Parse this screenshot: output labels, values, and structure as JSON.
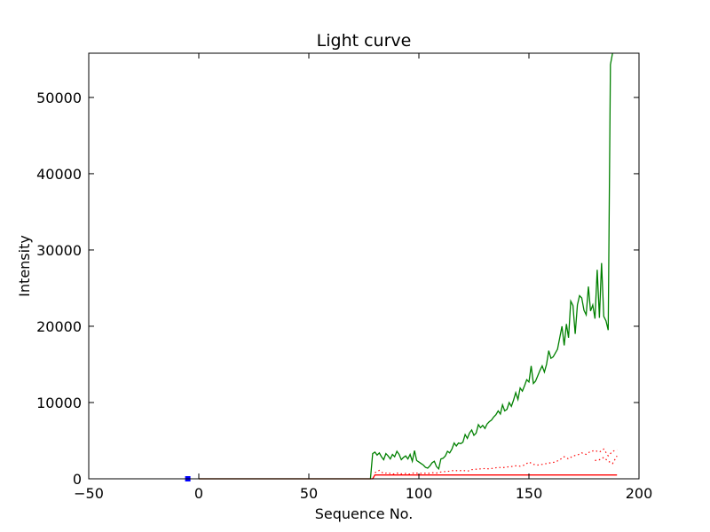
{
  "chart_data": {
    "type": "line",
    "title": "Light curve",
    "xlabel": "Sequence No.",
    "ylabel": "Intensity",
    "xlim": [
      -50,
      200
    ],
    "ylim": [
      0,
      55800
    ],
    "grid": false,
    "x_ticks": [
      -50,
      0,
      50,
      100,
      150,
      200
    ],
    "y_ticks": [
      0,
      10000,
      20000,
      30000,
      40000,
      50000
    ],
    "series": [
      {
        "color": "#008000",
        "style": "solid",
        "points": [
          [
            0,
            0
          ],
          [
            78,
            0
          ],
          [
            79,
            3300
          ],
          [
            80,
            3500
          ],
          [
            81,
            3100
          ],
          [
            82,
            3400
          ],
          [
            83,
            2900
          ],
          [
            84,
            2500
          ],
          [
            85,
            3300
          ],
          [
            86,
            3000
          ],
          [
            87,
            2600
          ],
          [
            88,
            3200
          ],
          [
            89,
            2900
          ],
          [
            90,
            3600
          ],
          [
            91,
            3200
          ],
          [
            92,
            2500
          ],
          [
            93,
            2800
          ],
          [
            94,
            3000
          ],
          [
            95,
            2600
          ],
          [
            96,
            3200
          ],
          [
            97,
            2300
          ],
          [
            98,
            3700
          ],
          [
            99,
            2400
          ],
          [
            100,
            2200
          ],
          [
            101,
            2000
          ],
          [
            102,
            1800
          ],
          [
            103,
            1500
          ],
          [
            104,
            1400
          ],
          [
            105,
            1700
          ],
          [
            106,
            2100
          ],
          [
            107,
            2300
          ],
          [
            108,
            1600
          ],
          [
            109,
            1300
          ],
          [
            110,
            2600
          ],
          [
            111,
            2700
          ],
          [
            112,
            3000
          ],
          [
            113,
            3600
          ],
          [
            114,
            3400
          ],
          [
            115,
            3900
          ],
          [
            116,
            4700
          ],
          [
            117,
            4300
          ],
          [
            118,
            4700
          ],
          [
            119,
            4600
          ],
          [
            120,
            4800
          ],
          [
            121,
            5800
          ],
          [
            122,
            5300
          ],
          [
            123,
            6000
          ],
          [
            124,
            6400
          ],
          [
            125,
            5700
          ],
          [
            126,
            6000
          ],
          [
            127,
            7100
          ],
          [
            128,
            6700
          ],
          [
            129,
            7000
          ],
          [
            130,
            6600
          ],
          [
            131,
            7200
          ],
          [
            132,
            7500
          ],
          [
            133,
            7700
          ],
          [
            134,
            8100
          ],
          [
            135,
            8400
          ],
          [
            136,
            8900
          ],
          [
            137,
            8500
          ],
          [
            138,
            9700
          ],
          [
            139,
            8900
          ],
          [
            140,
            9100
          ],
          [
            141,
            10000
          ],
          [
            142,
            9500
          ],
          [
            143,
            10300
          ],
          [
            144,
            11300
          ],
          [
            145,
            10400
          ],
          [
            146,
            11900
          ],
          [
            147,
            11500
          ],
          [
            148,
            12200
          ],
          [
            149,
            13000
          ],
          [
            150,
            12700
          ],
          [
            151,
            14800
          ],
          [
            152,
            12500
          ],
          [
            153,
            12800
          ],
          [
            154,
            13500
          ],
          [
            155,
            14200
          ],
          [
            156,
            14800
          ],
          [
            157,
            14000
          ],
          [
            158,
            15000
          ],
          [
            159,
            16800
          ],
          [
            160,
            15800
          ],
          [
            161,
            16000
          ],
          [
            162,
            16500
          ],
          [
            163,
            17000
          ],
          [
            164,
            18500
          ],
          [
            165,
            20000
          ],
          [
            166,
            17500
          ],
          [
            167,
            20300
          ],
          [
            168,
            18500
          ],
          [
            169,
            23300
          ],
          [
            170,
            22700
          ],
          [
            171,
            19000
          ],
          [
            172,
            22800
          ],
          [
            173,
            24000
          ],
          [
            174,
            23700
          ],
          [
            175,
            22100
          ],
          [
            176,
            21500
          ],
          [
            177,
            25200
          ],
          [
            178,
            22000
          ],
          [
            179,
            22800
          ],
          [
            180,
            21000
          ],
          [
            181,
            27400
          ],
          [
            182,
            21100
          ],
          [
            183,
            28300
          ],
          [
            184,
            21300
          ],
          [
            185,
            20700
          ],
          [
            186,
            19500
          ],
          [
            187,
            54300
          ],
          [
            188,
            55800
          ]
        ]
      },
      {
        "color": "#ff0000",
        "style": "solid",
        "points": [
          [
            0,
            0
          ],
          [
            79,
            0
          ],
          [
            80,
            500
          ],
          [
            190,
            500
          ]
        ]
      },
      {
        "color": "#ff0000",
        "style": "dotted",
        "points": [
          [
            80,
            800
          ],
          [
            82,
            1100
          ],
          [
            84,
            700
          ],
          [
            86,
            800
          ],
          [
            88,
            600
          ],
          [
            90,
            750
          ],
          [
            92,
            650
          ],
          [
            94,
            700
          ],
          [
            96,
            600
          ],
          [
            98,
            800
          ],
          [
            100,
            700
          ],
          [
            102,
            750
          ],
          [
            104,
            700
          ],
          [
            106,
            800
          ],
          [
            108,
            750
          ],
          [
            110,
            900
          ],
          [
            112,
            950
          ],
          [
            114,
            1000
          ],
          [
            116,
            1100
          ],
          [
            118,
            1050
          ],
          [
            120,
            1100
          ],
          [
            122,
            1000
          ],
          [
            124,
            1200
          ],
          [
            126,
            1250
          ],
          [
            128,
            1300
          ],
          [
            130,
            1350
          ],
          [
            132,
            1300
          ],
          [
            134,
            1400
          ],
          [
            136,
            1500
          ],
          [
            138,
            1450
          ],
          [
            140,
            1550
          ],
          [
            142,
            1600
          ],
          [
            144,
            1700
          ],
          [
            146,
            1650
          ],
          [
            148,
            1800
          ],
          [
            150,
            2200
          ],
          [
            152,
            1900
          ],
          [
            154,
            1800
          ],
          [
            156,
            1900
          ],
          [
            158,
            2000
          ],
          [
            160,
            2100
          ],
          [
            162,
            2200
          ],
          [
            164,
            2500
          ],
          [
            166,
            2900
          ],
          [
            168,
            2600
          ],
          [
            170,
            3000
          ],
          [
            172,
            3100
          ],
          [
            174,
            3400
          ],
          [
            176,
            3200
          ],
          [
            178,
            3600
          ],
          [
            180,
            3700
          ],
          [
            182,
            3500
          ],
          [
            184,
            3900
          ],
          [
            186,
            3000
          ],
          [
            188,
            3600
          ],
          [
            190,
            3800
          ]
        ]
      },
      {
        "color": "#ff0000",
        "style": "dotted",
        "points": [
          [
            180,
            2400
          ],
          [
            182,
            2500
          ],
          [
            184,
            2800
          ],
          [
            186,
            2300
          ],
          [
            188,
            2000
          ],
          [
            190,
            3000
          ]
        ]
      },
      {
        "color": "#0000ff",
        "style": "marker",
        "points": [
          [
            -5,
            0
          ]
        ]
      }
    ]
  }
}
